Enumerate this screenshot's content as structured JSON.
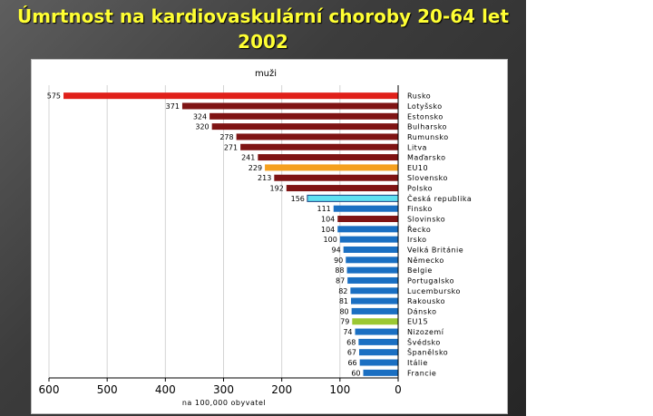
{
  "slide": {
    "title_line1": "Úmrtnost na kardiovaskulární choroby 20-64 let",
    "title_line2": "2002"
  },
  "colors": {
    "russia": "#e0201a",
    "dark_red": "#7f1414",
    "orange": "#f5a01e",
    "cyan": "#5fe0f0",
    "blue": "#1a6fc2",
    "green": "#9bc832",
    "title": "#ffff33"
  },
  "chart_data": {
    "type": "bar",
    "orientation": "horizontal",
    "title": "muži",
    "xlabel": "na 100,000 obyvatel",
    "ylabel": "",
    "xlim": [
      600,
      0
    ],
    "x_reversed": true,
    "grid": true,
    "ticks": [
      600,
      500,
      400,
      300,
      200,
      100,
      0
    ],
    "categories": [
      "Rusko",
      "Lotyšsko",
      "Estonsko",
      "Bulharsko",
      "Rumunsko",
      "Litva",
      "Maďarsko",
      "EU10",
      "Slovensko",
      "Polsko",
      "Česká republika",
      "Finsko",
      "Slovinsko",
      "Řecko",
      "Irsko",
      "Velká Británie",
      "Německo",
      "Belgie",
      "Portugalsko",
      "Lucembursko",
      "Rakousko",
      "Dánsko",
      "EU15",
      "Nizozemí",
      "Švédsko",
      "Španělsko",
      "Itálie",
      "Francie"
    ],
    "values": [
      575,
      371,
      324,
      320,
      278,
      271,
      241,
      229,
      213,
      192,
      156,
      111,
      104,
      104,
      100,
      94,
      90,
      88,
      87,
      82,
      81,
      80,
      79,
      74,
      68,
      67,
      66,
      60
    ],
    "bar_colors": [
      "russia",
      "dark_red",
      "dark_red",
      "dark_red",
      "dark_red",
      "dark_red",
      "dark_red",
      "orange",
      "dark_red",
      "dark_red",
      "cyan",
      "blue",
      "dark_red",
      "blue",
      "blue",
      "blue",
      "blue",
      "blue",
      "blue",
      "blue",
      "blue",
      "blue",
      "green",
      "blue",
      "blue",
      "blue",
      "blue",
      "blue"
    ]
  }
}
